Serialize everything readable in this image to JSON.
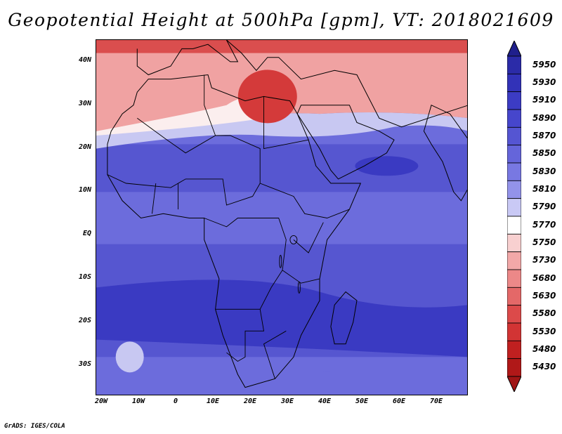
{
  "title": "Geopotential Height at 500hPa [gpm], VT: 2018021609",
  "credit": "GrADS: IGES/COLA",
  "lat_labels": [
    "40N",
    "30N",
    "20N",
    "10N",
    "EQ",
    "10S",
    "20S",
    "30S"
  ],
  "lon_labels": [
    "20W",
    "10W",
    "0",
    "10E",
    "20E",
    "30E",
    "40E",
    "50E",
    "60E",
    "70E"
  ],
  "colorbar": {
    "levels": [
      "5950",
      "5930",
      "5910",
      "5890",
      "5870",
      "5850",
      "5830",
      "5810",
      "5790",
      "5770",
      "5750",
      "5730",
      "5680",
      "5630",
      "5580",
      "5530",
      "5480",
      "5430"
    ],
    "colors": [
      "#2b2ba8",
      "#3232b8",
      "#3c3cc4",
      "#4646cc",
      "#5555d2",
      "#6565da",
      "#7878e2",
      "#9393ea",
      "#c9c9f5",
      "#ffffff",
      "#f8d0d0",
      "#f2a8a8",
      "#ec8888",
      "#e46868",
      "#dc4a4a",
      "#d23434",
      "#c02020",
      "#b01818"
    ],
    "top_arrow": "#1f1f8c",
    "bottom_arrow": "#a01515"
  },
  "map": {
    "lon_range": [
      -20,
      80
    ],
    "lat_range": [
      -37,
      45
    ],
    "field_colors": {
      "very_high": "#3a3ac2",
      "high": "#5656d0",
      "mid": "#6c6cdc",
      "transition": "#c8c8f2",
      "neutral": "#fbeeee",
      "low": "#f0a2a2",
      "very_low": "#d43a3a"
    }
  }
}
